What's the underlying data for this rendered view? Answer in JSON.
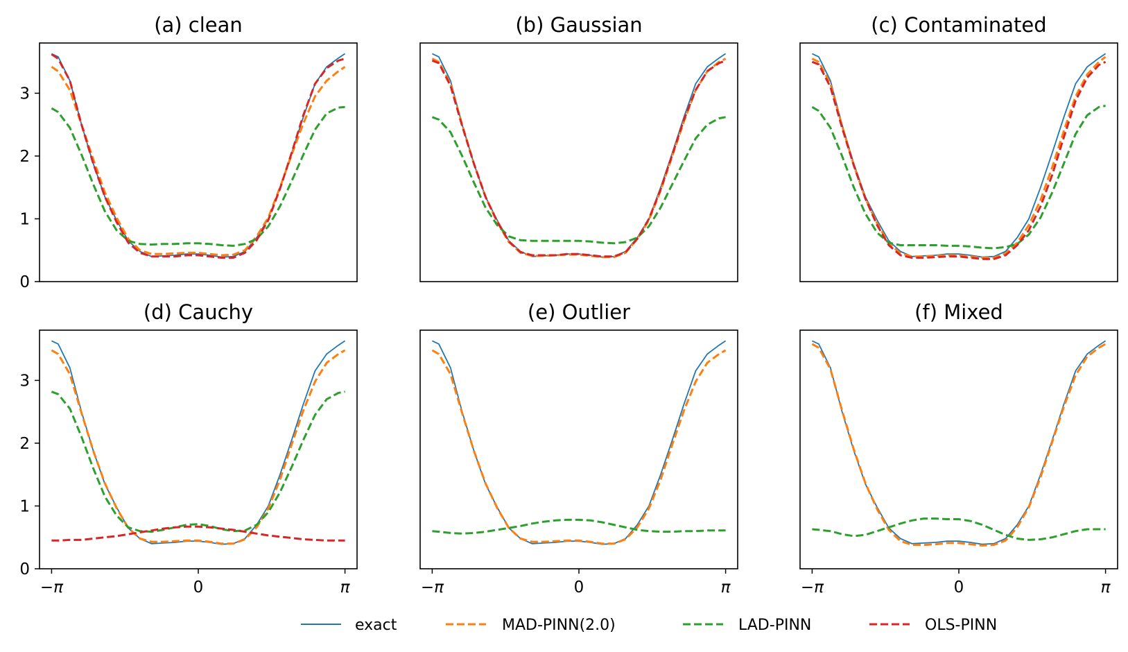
{
  "chart_data": {
    "type": "line",
    "x_ticks": [
      "−π",
      "0",
      "π"
    ],
    "y_ticks": [
      "0",
      "1",
      "2",
      "3"
    ],
    "ylim": [
      0,
      3.8
    ],
    "xlim": [
      -3.4,
      3.4
    ],
    "legend": [
      {
        "key": "exact",
        "label": "exact",
        "color": "#1f77b4",
        "style": "solid"
      },
      {
        "key": "mad",
        "label": "MAD-PINN(2.0)",
        "color": "#ff7f0e",
        "style": "dashed"
      },
      {
        "key": "lad",
        "label": "LAD-PINN",
        "color": "#2ca02c",
        "style": "dashed"
      },
      {
        "key": "ols",
        "label": "OLS-PINN",
        "color": "#d62728",
        "style": "dashed"
      }
    ],
    "x": [
      -3.1416,
      -3.0,
      -2.75,
      -2.5,
      -2.25,
      -2.0,
      -1.75,
      -1.5,
      -1.25,
      -1.0,
      -0.75,
      -0.5,
      -0.25,
      0.0,
      0.25,
      0.5,
      0.75,
      1.0,
      1.25,
      1.5,
      1.75,
      2.0,
      2.25,
      2.5,
      2.75,
      3.0,
      3.1416
    ],
    "exact": [
      3.63,
      3.58,
      3.2,
      2.5,
      1.88,
      1.35,
      0.98,
      0.65,
      0.48,
      0.4,
      0.41,
      0.42,
      0.44,
      0.44,
      0.42,
      0.39,
      0.4,
      0.48,
      0.7,
      1.0,
      1.5,
      2.05,
      2.62,
      3.15,
      3.42,
      3.56,
      3.63
    ],
    "panels": [
      {
        "title": "(a) clean",
        "series": {
          "mad": [
            3.42,
            3.35,
            3.05,
            2.5,
            1.95,
            1.42,
            1.02,
            0.68,
            0.5,
            0.44,
            0.44,
            0.45,
            0.46,
            0.46,
            0.44,
            0.42,
            0.43,
            0.5,
            0.72,
            1.02,
            1.5,
            2.02,
            2.52,
            2.95,
            3.2,
            3.35,
            3.42
          ],
          "lad": [
            2.76,
            2.7,
            2.45,
            2.02,
            1.55,
            1.12,
            0.82,
            0.65,
            0.6,
            0.59,
            0.6,
            0.6,
            0.61,
            0.61,
            0.6,
            0.58,
            0.57,
            0.6,
            0.68,
            0.88,
            1.2,
            1.6,
            2.02,
            2.42,
            2.68,
            2.77,
            2.78
          ],
          "ols": [
            3.62,
            3.55,
            3.2,
            2.5,
            1.88,
            1.35,
            0.95,
            0.62,
            0.46,
            0.4,
            0.4,
            0.4,
            0.42,
            0.42,
            0.4,
            0.38,
            0.38,
            0.46,
            0.66,
            0.98,
            1.48,
            2.05,
            2.65,
            3.15,
            3.4,
            3.52,
            3.55
          ]
        }
      },
      {
        "title": "(b) Gaussian",
        "series": {
          "mad": [
            3.55,
            3.5,
            3.15,
            2.5,
            1.88,
            1.35,
            0.95,
            0.63,
            0.46,
            0.41,
            0.41,
            0.42,
            0.43,
            0.43,
            0.41,
            0.39,
            0.39,
            0.46,
            0.68,
            0.98,
            1.45,
            2.0,
            2.55,
            3.05,
            3.35,
            3.5,
            3.55
          ],
          "lad": [
            2.62,
            2.58,
            2.38,
            2.0,
            1.58,
            1.18,
            0.9,
            0.72,
            0.66,
            0.65,
            0.65,
            0.65,
            0.65,
            0.65,
            0.64,
            0.62,
            0.61,
            0.63,
            0.7,
            0.88,
            1.18,
            1.55,
            1.92,
            2.28,
            2.5,
            2.6,
            2.62
          ],
          "ols": [
            3.52,
            3.48,
            3.12,
            2.48,
            1.88,
            1.35,
            0.96,
            0.64,
            0.47,
            0.42,
            0.42,
            0.42,
            0.44,
            0.44,
            0.42,
            0.4,
            0.4,
            0.47,
            0.68,
            1.0,
            1.47,
            2.02,
            2.58,
            3.05,
            3.35,
            3.48,
            3.52
          ]
        }
      },
      {
        "title": "(c) Contaminated",
        "series": {
          "mad": [
            3.55,
            3.5,
            3.15,
            2.48,
            1.85,
            1.32,
            0.93,
            0.61,
            0.45,
            0.4,
            0.4,
            0.41,
            0.42,
            0.42,
            0.4,
            0.38,
            0.38,
            0.45,
            0.62,
            0.9,
            1.3,
            1.82,
            2.4,
            2.95,
            3.3,
            3.5,
            3.58
          ],
          "lad": [
            2.78,
            2.72,
            2.45,
            2.0,
            1.5,
            1.08,
            0.78,
            0.62,
            0.58,
            0.58,
            0.58,
            0.58,
            0.57,
            0.57,
            0.56,
            0.54,
            0.53,
            0.55,
            0.6,
            0.75,
            1.02,
            1.42,
            1.88,
            2.35,
            2.65,
            2.78,
            2.8
          ],
          "ols": [
            3.5,
            3.46,
            3.1,
            2.45,
            1.85,
            1.32,
            0.9,
            0.58,
            0.42,
            0.38,
            0.38,
            0.39,
            0.4,
            0.4,
            0.38,
            0.36,
            0.36,
            0.42,
            0.58,
            0.82,
            1.2,
            1.7,
            2.3,
            2.88,
            3.25,
            3.45,
            3.5
          ]
        }
      },
      {
        "title": "(d) Cauchy",
        "series": {
          "mad": [
            3.48,
            3.42,
            3.1,
            2.48,
            1.88,
            1.36,
            0.97,
            0.65,
            0.48,
            0.43,
            0.43,
            0.44,
            0.45,
            0.45,
            0.43,
            0.4,
            0.4,
            0.47,
            0.66,
            0.96,
            1.42,
            1.98,
            2.52,
            2.98,
            3.28,
            3.42,
            3.48
          ],
          "lad": [
            2.82,
            2.78,
            2.55,
            2.1,
            1.6,
            1.15,
            0.85,
            0.66,
            0.6,
            0.59,
            0.62,
            0.66,
            0.7,
            0.71,
            0.68,
            0.63,
            0.6,
            0.61,
            0.7,
            0.9,
            1.22,
            1.62,
            2.05,
            2.45,
            2.7,
            2.8,
            2.82
          ],
          "ols": [
            0.45,
            0.45,
            0.46,
            0.46,
            0.48,
            0.5,
            0.52,
            0.55,
            0.58,
            0.61,
            0.64,
            0.66,
            0.67,
            0.67,
            0.66,
            0.64,
            0.62,
            0.59,
            0.56,
            0.53,
            0.51,
            0.49,
            0.47,
            0.46,
            0.45,
            0.45,
            0.45
          ]
        }
      },
      {
        "title": "(e) Outlier",
        "series": {
          "mad": [
            3.48,
            3.42,
            3.1,
            2.48,
            1.88,
            1.36,
            0.97,
            0.65,
            0.48,
            0.43,
            0.43,
            0.44,
            0.45,
            0.45,
            0.43,
            0.4,
            0.4,
            0.47,
            0.66,
            0.96,
            1.42,
            1.98,
            2.52,
            2.98,
            3.28,
            3.42,
            3.48
          ],
          "lad": [
            0.6,
            0.59,
            0.57,
            0.56,
            0.57,
            0.59,
            0.62,
            0.65,
            0.68,
            0.72,
            0.75,
            0.77,
            0.78,
            0.78,
            0.77,
            0.74,
            0.7,
            0.66,
            0.62,
            0.6,
            0.59,
            0.59,
            0.6,
            0.6,
            0.61,
            0.61,
            0.61
          ]
        }
      },
      {
        "title": "(f) Mixed",
        "series": {
          "mad": [
            3.58,
            3.52,
            3.18,
            2.52,
            1.9,
            1.36,
            0.95,
            0.62,
            0.44,
            0.38,
            0.38,
            0.39,
            0.41,
            0.41,
            0.39,
            0.37,
            0.38,
            0.45,
            0.66,
            0.98,
            1.46,
            2.02,
            2.58,
            3.08,
            3.38,
            3.52,
            3.58
          ],
          "lad": [
            0.63,
            0.62,
            0.6,
            0.55,
            0.52,
            0.54,
            0.6,
            0.66,
            0.72,
            0.77,
            0.8,
            0.8,
            0.79,
            0.79,
            0.76,
            0.7,
            0.62,
            0.54,
            0.48,
            0.46,
            0.47,
            0.5,
            0.55,
            0.6,
            0.63,
            0.63,
            0.63
          ]
        }
      }
    ]
  }
}
